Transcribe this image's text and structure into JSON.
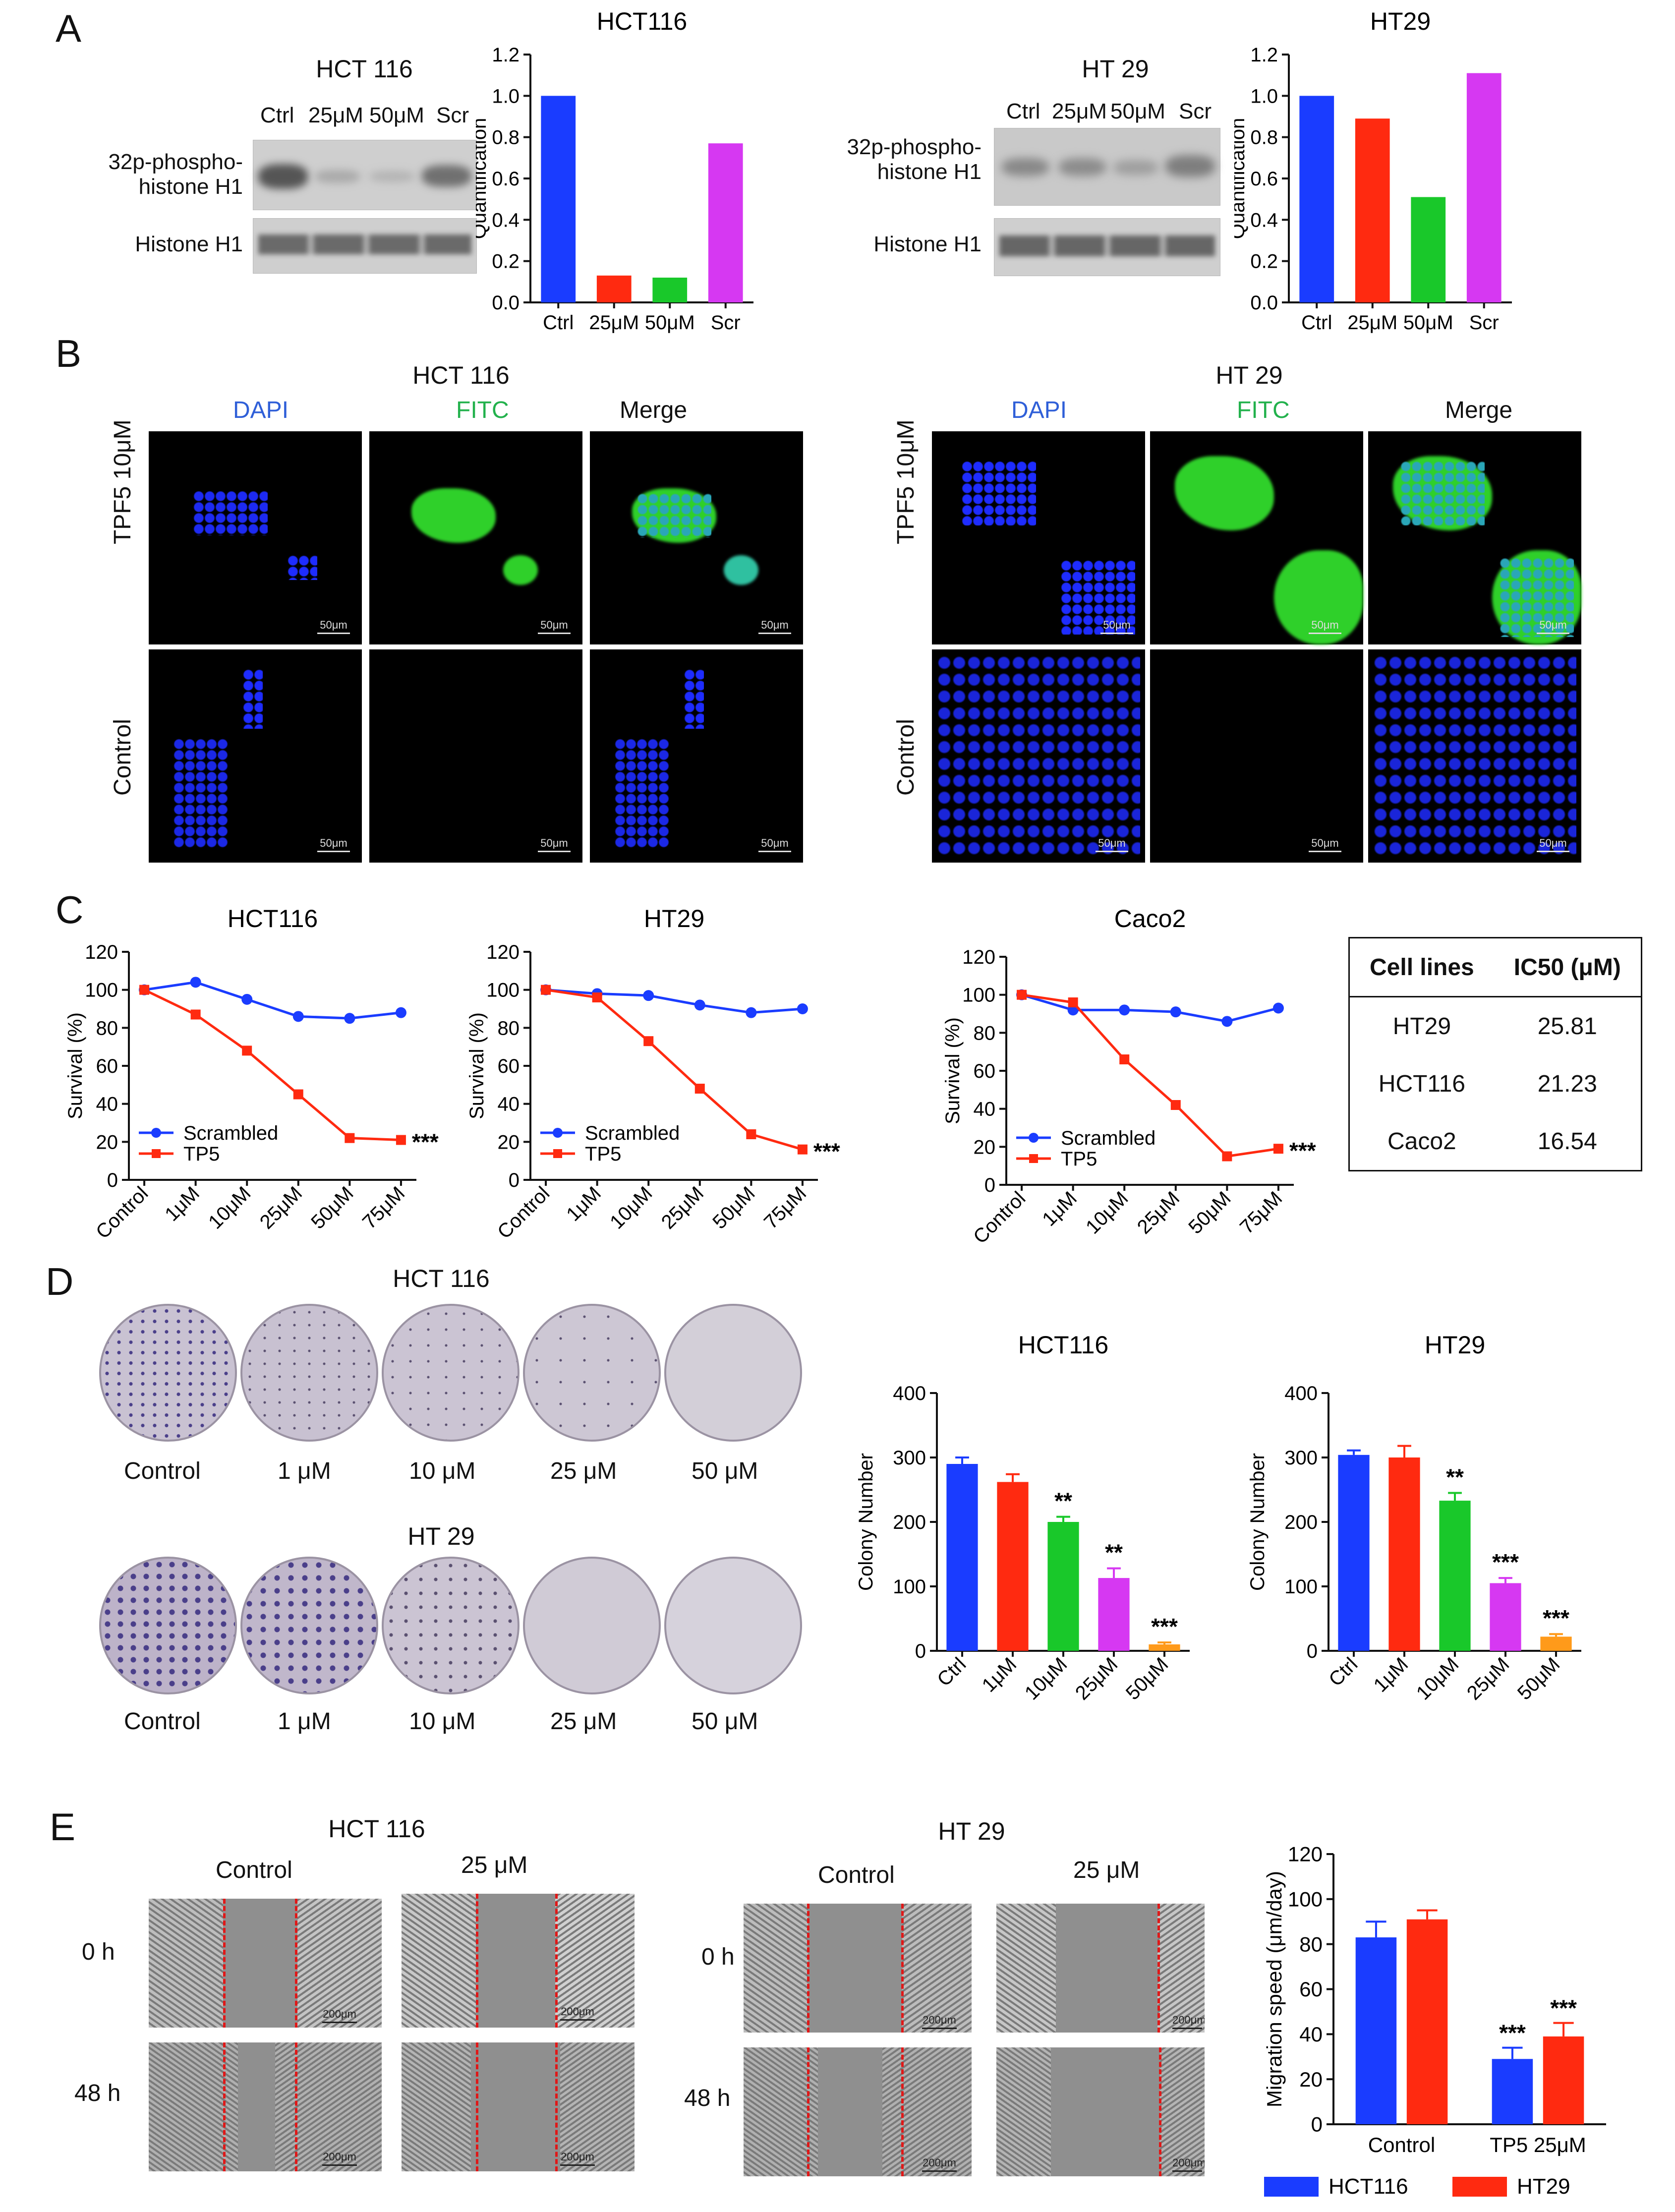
{
  "panels": {
    "A": "A",
    "B": "B",
    "C": "C",
    "D": "D",
    "E": "E"
  },
  "A": {
    "blot1": {
      "title": "HCT 116",
      "lanes": [
        "Ctrl",
        "25μM",
        "50μM",
        "Scr"
      ],
      "row1": "32p-phospho-\nhistone H1",
      "row2": "Histone H1"
    },
    "blot2": {
      "title": "HT 29",
      "lanes": [
        "Ctrl",
        "25μM",
        "50μM",
        "Scr"
      ],
      "row1": "32p-phospho-\nhistone H1",
      "row2": "Histone H1"
    }
  },
  "B": {
    "left_title": "HCT 116",
    "right_title": "HT 29",
    "cols": [
      "DAPI",
      "FITC",
      "Merge"
    ],
    "col_colors": [
      "#2f5fd8",
      "#22b14c",
      "#111111"
    ],
    "rows": [
      "TPF5 10μM",
      "Control"
    ],
    "scale": "50μm"
  },
  "C": {
    "table": {
      "headers": [
        "Cell lines",
        "IC50 (μM)"
      ],
      "rows": [
        [
          "HT29",
          "25.81"
        ],
        [
          "HCT116",
          "21.23"
        ],
        [
          "Caco2",
          "16.54"
        ]
      ]
    }
  },
  "D": {
    "top_title": "HCT 116",
    "bottom_title": "HT 29",
    "dish_labels": [
      "Control",
      "1 μM",
      "10 μM",
      "25 μM",
      "50 μM"
    ]
  },
  "E": {
    "left_title": "HCT 116",
    "right_title": "HT 29",
    "cols": [
      "Control",
      "25 μM"
    ],
    "rows": [
      "0 h",
      "48 h"
    ],
    "scale": "200μm"
  },
  "chart_data": [
    {
      "id": "A-HCT116",
      "type": "bar",
      "title": "HCT116",
      "ylabel": "Quantification",
      "xlabel": "",
      "ylim": [
        0,
        1.2
      ],
      "categories": [
        "Ctrl",
        "25μM",
        "50μM",
        "Scr"
      ],
      "values": [
        1.0,
        0.13,
        0.12,
        0.77
      ],
      "colors": [
        "#1a3cff",
        "#ff2a10",
        "#19c82a",
        "#d638f2"
      ],
      "yticks": [
        "0.0",
        "0.2",
        "0.4",
        "0.6",
        "0.8",
        "1.0",
        "1.2"
      ]
    },
    {
      "id": "A-HT29",
      "type": "bar",
      "title": "HT29",
      "ylabel": "Quantification",
      "xlabel": "",
      "ylim": [
        0,
        1.2
      ],
      "categories": [
        "Ctrl",
        "25μM",
        "50μM",
        "Scr"
      ],
      "values": [
        1.0,
        0.89,
        0.51,
        1.11
      ],
      "colors": [
        "#1a3cff",
        "#ff2a10",
        "#19c82a",
        "#d638f2"
      ],
      "yticks": [
        "0.0",
        "0.2",
        "0.4",
        "0.6",
        "0.8",
        "1.0",
        "1.2"
      ]
    },
    {
      "id": "C-HCT116",
      "type": "line",
      "title": "HCT116",
      "ylabel": "Survival (%)",
      "ylim": [
        0,
        120
      ],
      "categories": [
        "Control",
        "1μM",
        "10μM",
        "25μM",
        "50μM",
        "75μM"
      ],
      "yticks": [
        "0",
        "20",
        "40",
        "60",
        "80",
        "100",
        "120"
      ],
      "series": [
        {
          "name": "Scrambled",
          "values": [
            100,
            104,
            95,
            86,
            85,
            88
          ],
          "color": "#1a3cff",
          "marker": "circle"
        },
        {
          "name": "TP5",
          "values": [
            100,
            87,
            68,
            45,
            22,
            21
          ],
          "color": "#ff2a10",
          "marker": "square"
        }
      ],
      "annotation": "***",
      "legend": "bottom-left"
    },
    {
      "id": "C-HT29",
      "type": "line",
      "title": "HT29",
      "ylabel": "Survival (%)",
      "ylim": [
        0,
        120
      ],
      "categories": [
        "Control",
        "1μM",
        "10μM",
        "25μM",
        "50μM",
        "75μM"
      ],
      "yticks": [
        "0",
        "20",
        "40",
        "60",
        "80",
        "100",
        "120"
      ],
      "series": [
        {
          "name": "Scrambled",
          "values": [
            100,
            98,
            97,
            92,
            88,
            90
          ],
          "color": "#1a3cff",
          "marker": "circle"
        },
        {
          "name": "TP5",
          "values": [
            100,
            96,
            73,
            48,
            24,
            16
          ],
          "color": "#ff2a10",
          "marker": "square"
        }
      ],
      "annotation": "***",
      "legend": "bottom-left"
    },
    {
      "id": "C-Caco2",
      "type": "line",
      "title": "Caco2",
      "ylabel": "Survival (%)",
      "ylim": [
        0,
        120
      ],
      "categories": [
        "Control",
        "1μM",
        "10μM",
        "25μM",
        "50μM",
        "75μM"
      ],
      "yticks": [
        "0",
        "20",
        "40",
        "60",
        "80",
        "100",
        "120"
      ],
      "series": [
        {
          "name": "Scrambled",
          "values": [
            100,
            92,
            92,
            91,
            86,
            93
          ],
          "color": "#1a3cff",
          "marker": "circle"
        },
        {
          "name": "TP5",
          "values": [
            100,
            96,
            66,
            42,
            15,
            19
          ],
          "color": "#ff2a10",
          "marker": "square"
        }
      ],
      "annotation": "***",
      "legend": "bottom-left"
    },
    {
      "id": "D-HCT116",
      "type": "bar",
      "title": "HCT116",
      "ylabel": "Colony Number",
      "ylim": [
        0,
        400
      ],
      "categories": [
        "Ctrl",
        "1μM",
        "10μM",
        "25μM",
        "50μM"
      ],
      "values": [
        290,
        262,
        200,
        113,
        10
      ],
      "errors": [
        10,
        12,
        8,
        15,
        3
      ],
      "sig": [
        "",
        "",
        "**",
        "**",
        "***"
      ],
      "colors": [
        "#1a3cff",
        "#ff2a10",
        "#19c82a",
        "#d638f2",
        "#ff9a1a"
      ],
      "yticks": [
        "0",
        "100",
        "200",
        "300",
        "400"
      ]
    },
    {
      "id": "D-HT29",
      "type": "bar",
      "title": "HT29",
      "ylabel": "Colony Number",
      "ylim": [
        0,
        400
      ],
      "categories": [
        "Ctrl",
        "1μM",
        "10μM",
        "25μM",
        "50μM"
      ],
      "values": [
        304,
        300,
        233,
        105,
        22
      ],
      "errors": [
        7,
        18,
        12,
        8,
        4
      ],
      "sig": [
        "",
        "",
        "**",
        "***",
        "***"
      ],
      "colors": [
        "#1a3cff",
        "#ff2a10",
        "#19c82a",
        "#d638f2",
        "#ff9a1a"
      ],
      "yticks": [
        "0",
        "100",
        "200",
        "300",
        "400"
      ]
    },
    {
      "id": "E-migration",
      "type": "bar",
      "title": "",
      "ylabel": "Migration speed (μm/day)",
      "ylim": [
        0,
        120
      ],
      "categories": [
        "Control",
        "TP5 25μM"
      ],
      "series": [
        {
          "name": "HCT116",
          "values": [
            83,
            29
          ],
          "errors": [
            7,
            5
          ],
          "color": "#1a3cff"
        },
        {
          "name": "HT29",
          "values": [
            91,
            39
          ],
          "errors": [
            4,
            6
          ],
          "color": "#ff2a10"
        }
      ],
      "sig": [
        [
          "",
          ""
        ],
        [
          "***",
          "***"
        ]
      ],
      "yticks": [
        "0",
        "20",
        "40",
        "60",
        "80",
        "100",
        "120"
      ],
      "legend": "bottom"
    }
  ]
}
